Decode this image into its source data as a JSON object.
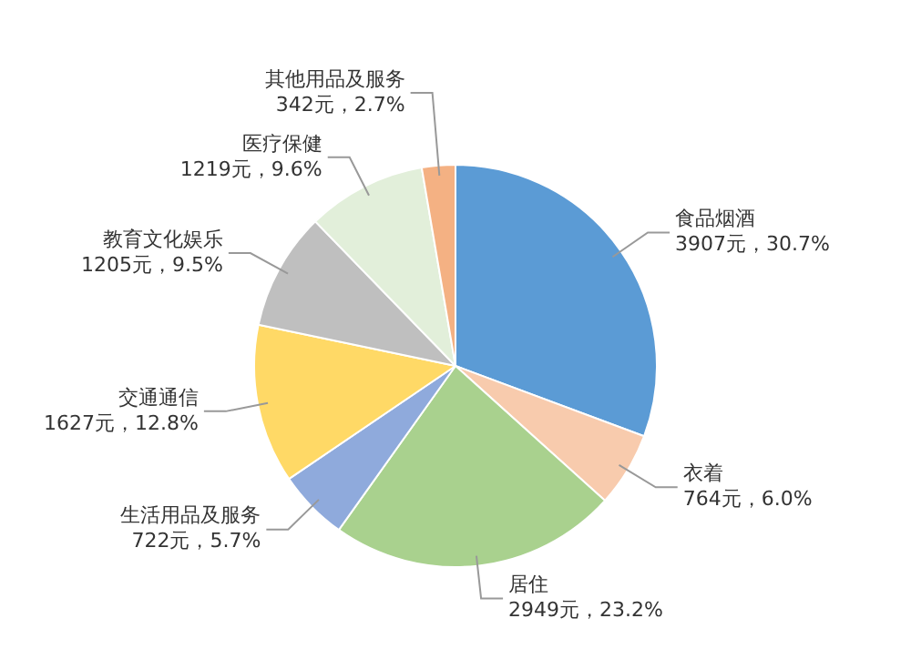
{
  "chart_data": {
    "type": "pie",
    "categories": [
      "食品烟酒",
      "衣着",
      "居住",
      "生活用品及服务",
      "交通通信",
      "教育文化娱乐",
      "医疗保健",
      "其他用品及服务"
    ],
    "values": [
      3907,
      764,
      2949,
      722,
      1627,
      1205,
      1219,
      342
    ],
    "value_labels": [
      "3907元，30.7%",
      "764元，6.0%",
      "2949元，23.2%",
      "722元，5.7%",
      "1627元，12.8%",
      "1205元，9.5%",
      "1219元，9.6%",
      "342元，2.7%"
    ],
    "colors": [
      "#5b9bd5",
      "#f8cbad",
      "#a9d18e",
      "#8faadc",
      "#ffd966",
      "#bfbfbf",
      "#e2efda",
      "#f4b183"
    ],
    "legend": false
  }
}
